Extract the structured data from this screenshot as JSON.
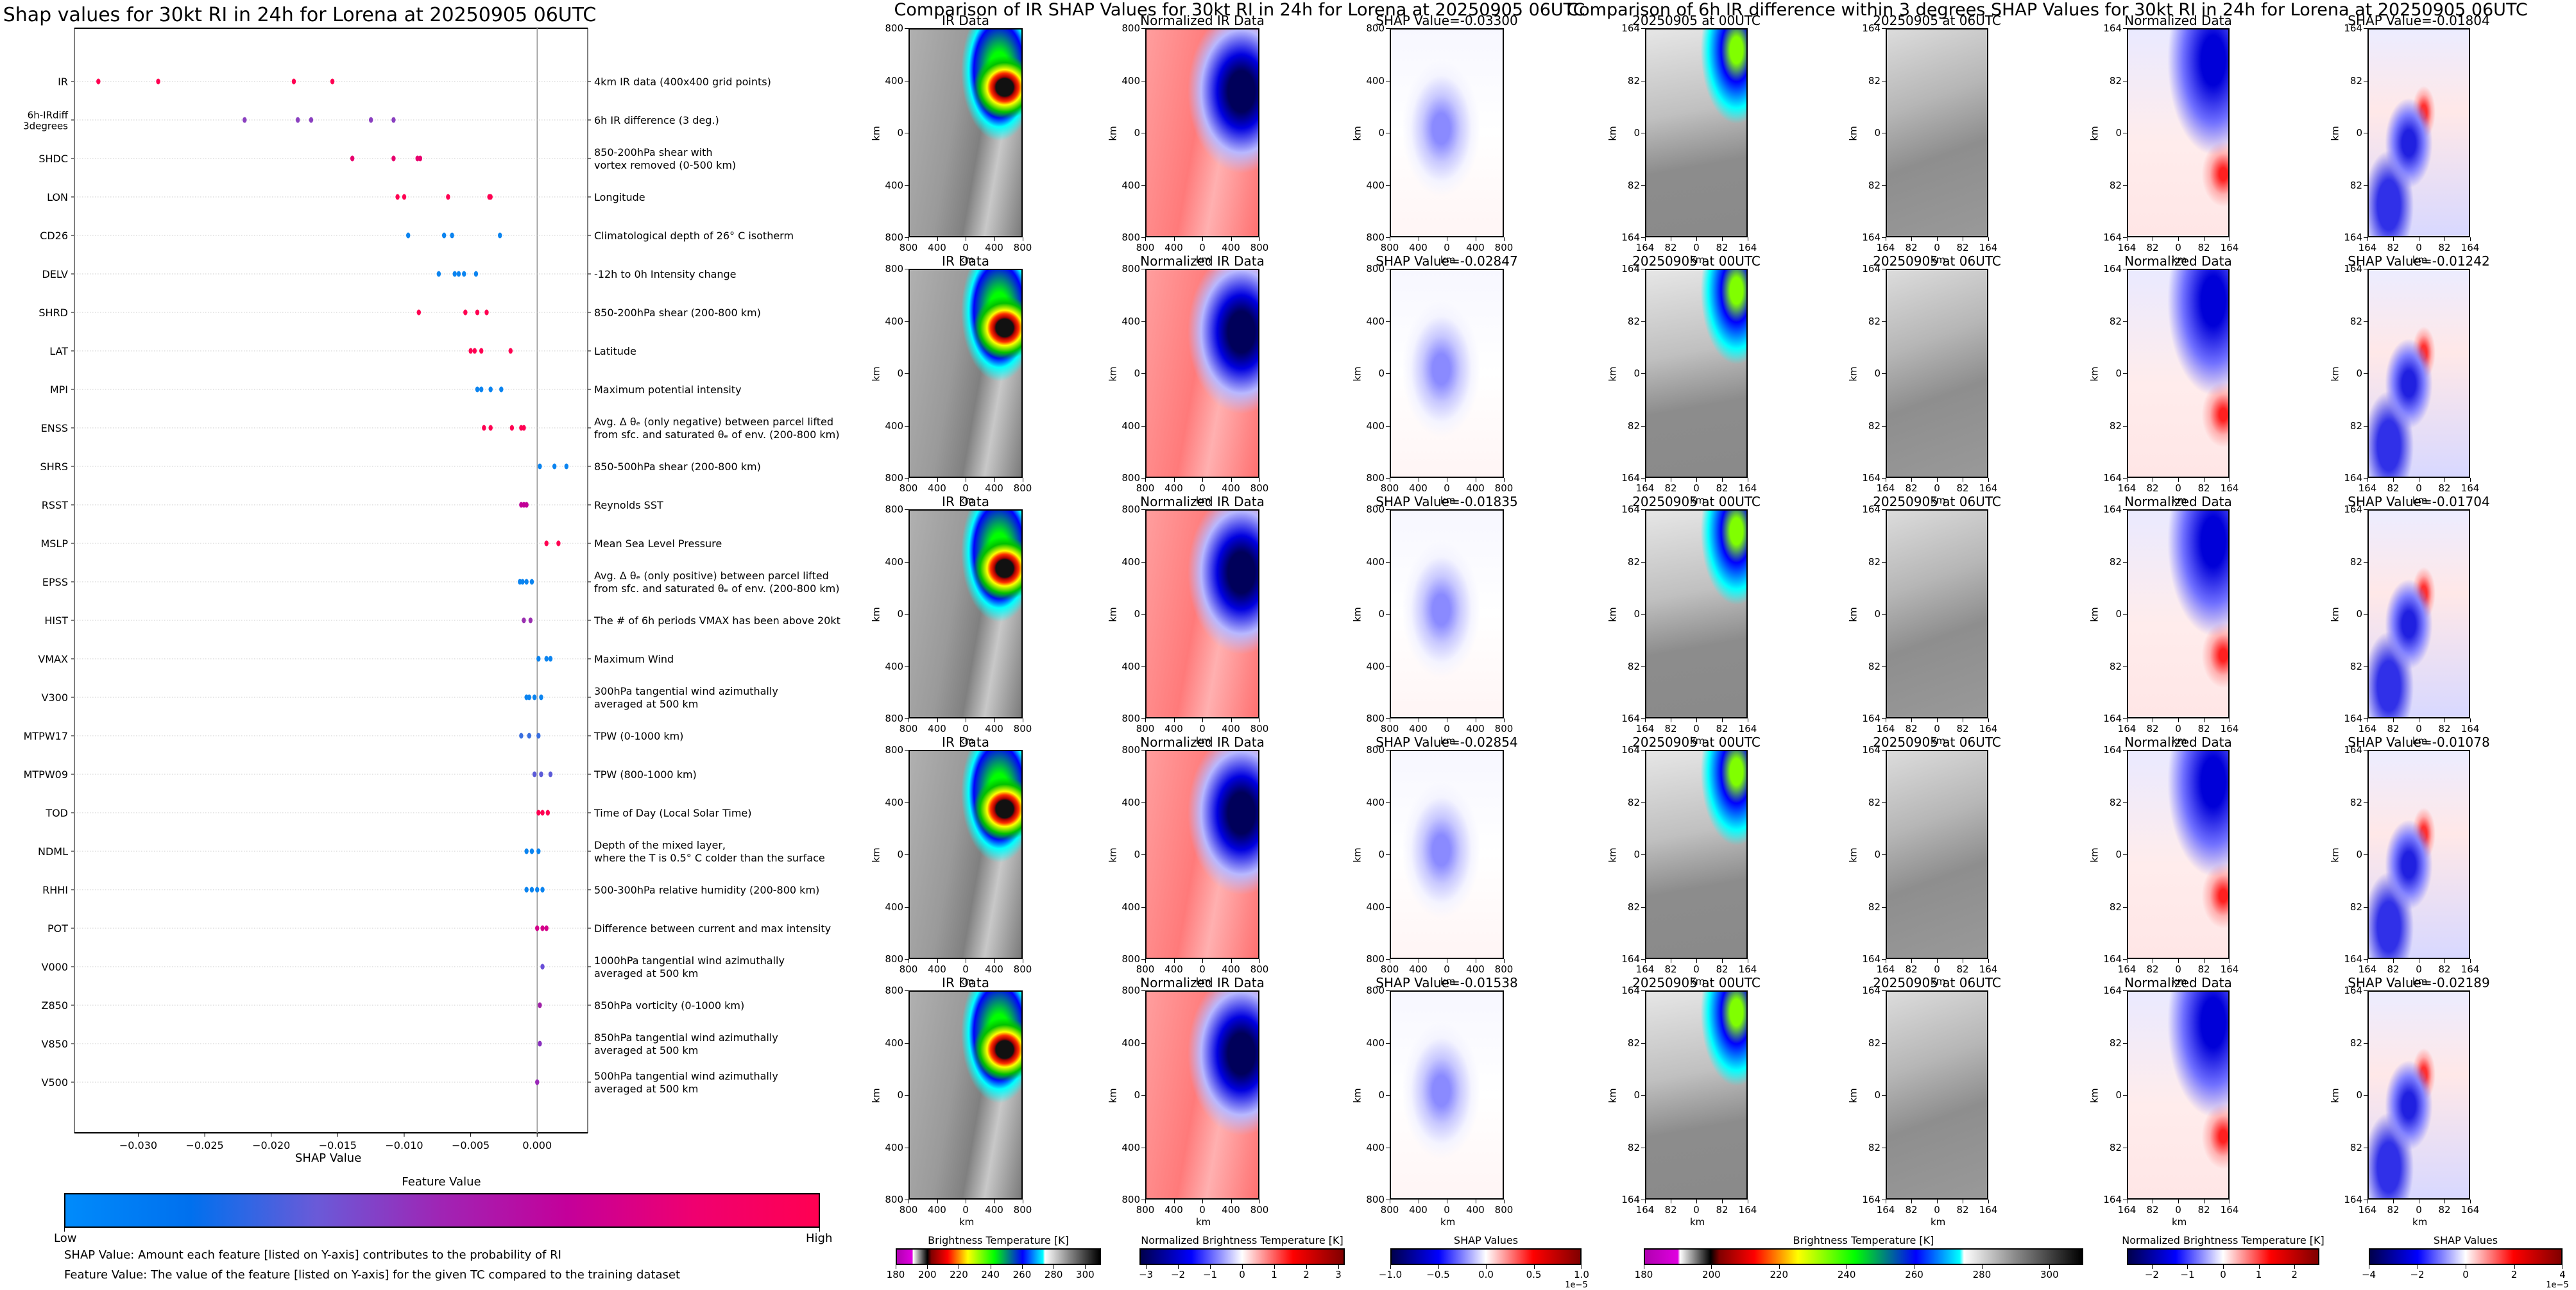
{
  "chart_data": [
    {
      "type": "scatter",
      "title": "Shap values for 30kt RI in 24h for Lorena at 20250905 06UTC",
      "xlabel": "SHAP Value",
      "ylabel": "",
      "xlim": [
        -0.0348,
        0.0038
      ],
      "xticks": [
        "−0.030",
        "−0.025",
        "−0.020",
        "−0.015",
        "−0.010",
        "−0.005",
        "0.000"
      ],
      "xtick_values": [
        -0.03,
        -0.025,
        -0.02,
        -0.015,
        -0.01,
        -0.005,
        0.0
      ],
      "grid": "horizontal dotted per feature",
      "features": [
        {
          "name": "IR",
          "desc": [
            "4km IR data (400x400 grid points)"
          ],
          "color": "#ff0052",
          "points": [
            -0.033,
            -0.0285,
            -0.0183,
            -0.0154
          ]
        },
        {
          "name": "6h-IRdiff\n3degrees",
          "desc": [
            "6h IR difference (3 deg.)"
          ],
          "color": "#8a3fc0",
          "points": [
            -0.022,
            -0.018,
            -0.017,
            -0.0125,
            -0.0108
          ]
        },
        {
          "name": "SHDC",
          "desc": [
            "850-200hPa shear with",
            "vortex removed (0-500 km)"
          ],
          "color": "#e8006e",
          "points": [
            -0.0139,
            -0.0108,
            -0.009,
            -0.0088
          ]
        },
        {
          "name": "LON",
          "desc": [
            "Longitude"
          ],
          "color": "#ff0052",
          "points": [
            -0.0105,
            -0.01,
            -0.0067,
            -0.0036,
            -0.0035
          ]
        },
        {
          "name": "CD26",
          "desc": [
            "Climatological depth of 26° C isotherm"
          ],
          "color": "#0b84f0",
          "points": [
            -0.0097,
            -0.007,
            -0.0064,
            -0.0028
          ]
        },
        {
          "name": "DELV",
          "desc": [
            "-12h to 0h Intensity change"
          ],
          "color": "#0b84f0",
          "points": [
            -0.0074,
            -0.0062,
            -0.0059,
            -0.0055,
            -0.0046
          ]
        },
        {
          "name": "SHRD",
          "desc": [
            "850-200hPa shear (200-800 km)"
          ],
          "color": "#ff0052",
          "points": [
            -0.0089,
            -0.0054,
            -0.0045,
            -0.0038
          ]
        },
        {
          "name": "LAT",
          "desc": [
            "Latitude"
          ],
          "color": "#ff0052",
          "points": [
            -0.005,
            -0.0047,
            -0.0042,
            -0.002
          ]
        },
        {
          "name": "MPI",
          "desc": [
            "Maximum potential intensity"
          ],
          "color": "#0b84f0",
          "points": [
            -0.0045,
            -0.0042,
            -0.0035,
            -0.0027
          ]
        },
        {
          "name": "ENSS",
          "desc": [
            "Avg. Δ θₑ (only negative) between parcel lifted",
            "from sfc. and saturated θₑ of env. (200-800 km)"
          ],
          "color": "#ff0052",
          "points": [
            -0.004,
            -0.0035,
            -0.0019,
            -0.0012,
            -0.001
          ]
        },
        {
          "name": "SHRS",
          "desc": [
            "850-500hPa shear (200-800 km)"
          ],
          "color": "#0b84f0",
          "points": [
            0.0002,
            0.0013,
            0.0022
          ]
        },
        {
          "name": "RSST",
          "desc": [
            "Reynolds SST"
          ],
          "color": "#c20097",
          "points": [
            -0.0012,
            -0.001,
            -0.0008
          ]
        },
        {
          "name": "MSLP",
          "desc": [
            "Mean Sea Level Pressure"
          ],
          "color": "#ff0052",
          "points": [
            0.0007,
            0.0016
          ]
        },
        {
          "name": "EPSS",
          "desc": [
            "Avg. Δ θₑ (only positive) between parcel lifted",
            "from sfc. and saturated θₑ of env. (200-800 km)"
          ],
          "color": "#0b84f0",
          "points": [
            -0.0013,
            -0.0011,
            -0.0008,
            -0.0004
          ]
        },
        {
          "name": "HIST",
          "desc": [
            "The # of 6h periods VMAX has been above 20kt"
          ],
          "color": "#9a2fb0",
          "points": [
            -0.001,
            -0.0005
          ]
        },
        {
          "name": "VMAX",
          "desc": [
            "Maximum Wind"
          ],
          "color": "#0b84f0",
          "points": [
            0.0001,
            0.0007,
            0.001
          ]
        },
        {
          "name": "V300",
          "desc": [
            "300hPa tangential wind azimuthally",
            "averaged at 500 km"
          ],
          "color": "#0b84f0",
          "points": [
            -0.0008,
            -0.0006,
            -0.0002,
            0.0003
          ]
        },
        {
          "name": "MTPW17",
          "desc": [
            "TPW (0-1000 km)"
          ],
          "color": "#3a6fe0",
          "points": [
            -0.0012,
            -0.0006,
            0.0001
          ]
        },
        {
          "name": "MTPW09",
          "desc": [
            "TPW (800-1000 km)"
          ],
          "color": "#5b5ad8",
          "points": [
            -0.0002,
            0.0003,
            0.001
          ]
        },
        {
          "name": "TOD",
          "desc": [
            "Time of Day (Local Solar Time)"
          ],
          "color": "#ff0052",
          "points": [
            0.0001,
            0.0004,
            0.0008
          ]
        },
        {
          "name": "NDML",
          "desc": [
            "Depth of the mixed layer,",
            "where the T is 0.5° C colder than the surface"
          ],
          "color": "#0b84f0",
          "points": [
            -0.0008,
            -0.0004,
            0.0001
          ]
        },
        {
          "name": "RHHI",
          "desc": [
            "500-300hPa relative humidity (200-800 km)"
          ],
          "color": "#0b84f0",
          "points": [
            -0.0008,
            -0.0004,
            0.0,
            0.0004
          ]
        },
        {
          "name": "POT",
          "desc": [
            "Difference between current and max intensity"
          ],
          "color": "#d4008a",
          "points": [
            0.0,
            0.0004,
            0.0007
          ]
        },
        {
          "name": "V000",
          "desc": [
            "1000hPa tangential wind azimuthally",
            "averaged at 500 km"
          ],
          "color": "#6a4fd8",
          "points": [
            0.0004
          ]
        },
        {
          "name": "Z850",
          "desc": [
            "850hPa vorticity (0-1000 km)"
          ],
          "color": "#a020a8",
          "points": [
            0.0002
          ]
        },
        {
          "name": "V850",
          "desc": [
            "850hPa tangential wind azimuthally",
            "averaged at 500 km"
          ],
          "color": "#8a30c0",
          "points": [
            0.0002
          ]
        },
        {
          "name": "V500",
          "desc": [
            "500hPa tangential wind azimuthally",
            "averaged at 500 km"
          ],
          "color": "#9a28b8",
          "points": [
            0.0
          ]
        }
      ],
      "colorbar": {
        "title": "Feature Value",
        "low": "Low",
        "high": "High",
        "colors": [
          "#008bfb",
          "#0070ee",
          "#6a5ad8",
          "#a024b4",
          "#c4009a",
          "#ef0070",
          "#ff0052"
        ]
      },
      "notes": [
        "SHAP Value: Amount each feature [listed on Y-axis] contributes to the probability of RI",
        "Feature Value: The value of the feature [listed on Y-axis] for the given TC compared to the training dataset"
      ]
    },
    {
      "type": "heatmap",
      "title": "Comparison of IR SHAP Values for 30kt RI in 24h for Lorena at 20250905 06UTC",
      "columns": [
        "IR Data",
        "Normalized IR Data"
      ],
      "shap_titles": [
        "SHAP Value=-0.03300",
        "SHAP Value=-0.02847",
        "SHAP Value=-0.01835",
        "SHAP Value=-0.02854",
        "SHAP Value=-0.01538"
      ],
      "shap_values": [
        -0.033,
        -0.02847,
        -0.01835,
        -0.02854,
        -0.01538
      ],
      "axis_ticks": [
        "800",
        "400",
        "0",
        "400",
        "800"
      ],
      "xlabel": "km",
      "ylabel": "km",
      "colorbars": [
        {
          "title": "Brightness Temperature [K]",
          "ticks": [
            "180",
            "200",
            "220",
            "240",
            "260",
            "280",
            "300"
          ],
          "range": [
            180,
            310
          ],
          "scale": ""
        },
        {
          "title": "Normalized Brightness Temperature [K]",
          "ticks": [
            "−3",
            "−2",
            "−1",
            "0",
            "1",
            "2",
            "3"
          ],
          "range": [
            -3.2,
            3.2
          ],
          "scale": ""
        },
        {
          "title": "SHAP Values",
          "ticks": [
            "−1.0",
            "−0.5",
            "0.0",
            "0.5",
            "1.0"
          ],
          "range": [
            -1.0,
            1.0
          ],
          "scale": "1e−5"
        }
      ]
    },
    {
      "type": "heatmap",
      "title": "Comparison of 6h IR difference within 3 degrees SHAP Values for 30kt RI in 24h for Lorena at 20250905 06UTC",
      "columns": [
        "20250905 at 00UTC",
        "20250905 at 06UTC",
        "Normalized Data"
      ],
      "shap_titles": [
        "SHAP Value=-0.01804",
        "SHAP Value=-0.01242",
        "SHAP Value=-0.01704",
        "SHAP Value=-0.01078",
        "SHAP Value=-0.02189"
      ],
      "shap_values": [
        -0.01804,
        -0.01242,
        -0.01704,
        -0.01078,
        -0.02189
      ],
      "axis_ticks": [
        "164",
        "82",
        "0",
        "82",
        "164"
      ],
      "xlabel": "km",
      "ylabel": "km",
      "colorbars": [
        {
          "title": "Brightness Temperature [K]",
          "ticks": [
            "180",
            "200",
            "220",
            "240",
            "260",
            "280",
            "300"
          ],
          "range": [
            180,
            310
          ],
          "scale": ""
        },
        {
          "title": "Normalized Brightness Temperature [K]",
          "ticks": [
            "−2",
            "−1",
            "0",
            "1",
            "2"
          ],
          "range": [
            -2.7,
            2.7
          ],
          "scale": ""
        },
        {
          "title": "SHAP Values",
          "ticks": [
            "−4",
            "−2",
            "0",
            "2",
            "4"
          ],
          "range": [
            -4,
            4
          ],
          "scale": "1e−5"
        }
      ]
    }
  ]
}
